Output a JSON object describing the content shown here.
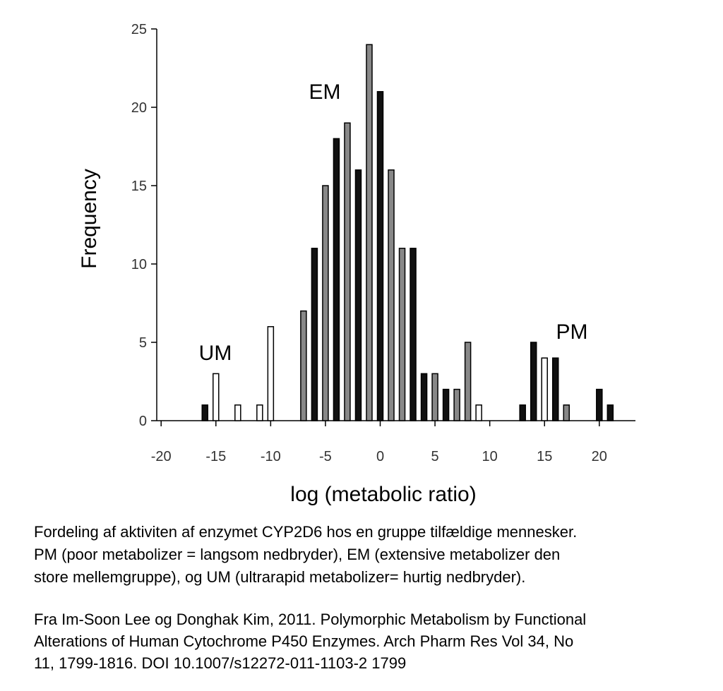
{
  "chart_data": {
    "type": "bar",
    "x": [
      -16,
      -15,
      -13,
      -11,
      -10,
      -7,
      -6,
      -5,
      -4,
      -3,
      -2,
      -1,
      0,
      1,
      2,
      3,
      4,
      5,
      6,
      7,
      8,
      9,
      13,
      14,
      15,
      16,
      17,
      20,
      21
    ],
    "values": [
      1,
      3,
      1,
      1,
      6,
      7,
      11,
      15,
      18,
      19,
      16,
      24,
      21,
      16,
      11,
      11,
      3,
      3,
      2,
      2,
      5,
      1,
      1,
      5,
      4,
      4,
      1,
      2,
      1
    ],
    "colors": [
      "#111",
      "#fff",
      "#fff",
      "#fff",
      "#fff",
      "#888",
      "#111",
      "#888",
      "#111",
      "#888",
      "#111",
      "#888",
      "#111",
      "#888",
      "#888",
      "#111",
      "#111",
      "#888",
      "#111",
      "#888",
      "#888",
      "#fff",
      "#111",
      "#111",
      "#fff",
      "#111",
      "#888",
      "#111",
      "#111"
    ],
    "xlim": [
      -20.4,
      23.3
    ],
    "ylim": [
      0,
      25
    ],
    "xticks": [
      -20,
      -15,
      -10,
      -5,
      0,
      5,
      10,
      15,
      20
    ],
    "yticks": [
      0,
      5,
      10,
      15,
      20,
      25
    ],
    "xlabel": "log (metabolic ratio)",
    "ylabel": "Frequency",
    "annotations": [
      "UM",
      "EM",
      "PM"
    ]
  },
  "caption": {
    "description": [
      "Fordeling af aktiviten af enzymet CYP2D6 hos en gruppe tilfældige mennesker.",
      "PM (poor metabolizer = langsom nedbryder), EM (extensive metabolizer den",
      "store mellemgruppe), og UM (ultrarapid metabolizer= hurtig nedbryder)."
    ],
    "source": [
      "Fra Im-Soon Lee og Donghak Kim, 2011. Polymorphic Metabolism by Functional",
      "Alterations of Human Cytochrome P450 Enzymes. Arch Pharm Res Vol 34, No",
      "11, 1799-1816. DOI 10.1007/s12272-011-1103-2 1799"
    ]
  }
}
